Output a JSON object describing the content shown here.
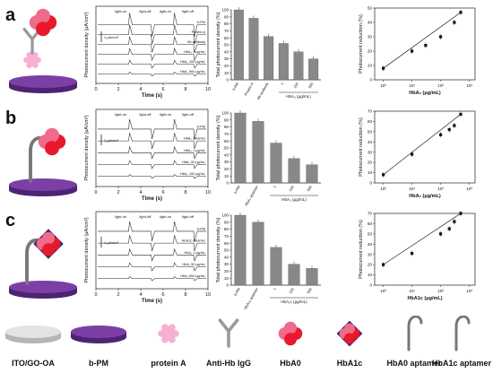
{
  "rows": [
    {
      "letter": "a",
      "trace_labels": [
        "b-PM",
        "Protein A",
        "Hb antibody",
        "HbA₀ 1 μg/mL",
        "HbA₀ 100 μg/mL",
        "HbA₀ 500 μg/mL"
      ],
      "light_labels": [
        "light-on",
        "light-off",
        "light-on",
        "light-off"
      ],
      "scale_label": "1 μA/cm²",
      "bar_categories": [
        "b-PM",
        "Protein A",
        "Hb antibody",
        "1",
        "100",
        "500"
      ],
      "bar_values": [
        100,
        88,
        62,
        52,
        40,
        30
      ],
      "bar_group_label": "HbA₀ (μg/mL)",
      "scatter_x": [
        1,
        10,
        30,
        100,
        300,
        500
      ],
      "scatter_y": [
        8,
        20,
        24,
        30,
        40,
        47
      ],
      "scatter_xlabel": "HbA₀ (μg/mL)"
    },
    {
      "letter": "b",
      "trace_labels": [
        "b-PM",
        "HbA₀ aptamer",
        "HbA₀ 1 μg/mL",
        "HbA₀ 50 μg/mL",
        "HbA₀ 100 μg/mL"
      ],
      "light_labels": [
        "light-on",
        "light-off",
        "light-on",
        "light-off"
      ],
      "scale_label": "1 μA/cm²",
      "bar_categories": [
        "b-PM",
        "HbA₀ aptamer",
        "1",
        "100",
        "500"
      ],
      "bar_values": [
        100,
        88,
        57,
        35,
        26
      ],
      "bar_group_label": "HbA₀ (μg/mL)",
      "scatter_x": [
        1,
        10,
        100,
        200,
        300,
        500
      ],
      "scatter_y": [
        8,
        28,
        47,
        52,
        56,
        67
      ],
      "scatter_xlabel": "HbA₀ (μg/mL)"
    },
    {
      "letter": "c",
      "trace_labels": [
        "b-PM",
        "HbA1c aptamer",
        "HbA₁ 1 μg/mL",
        "HbA₁ 50 μg/mL",
        "HbA₁ 500 μg/mL"
      ],
      "light_labels": [
        "light-on",
        "light-off",
        "light-on",
        "light-off"
      ],
      "scale_label": "1 μA/cm²",
      "bar_categories": [
        "b-PM",
        "HbA₁c aptamer",
        "1",
        "100",
        "500"
      ],
      "bar_values": [
        100,
        90,
        54,
        30,
        24
      ],
      "bar_group_label": "HbA₁c (μg/mL)",
      "scatter_x": [
        1,
        10,
        100,
        200,
        300,
        500
      ],
      "scatter_y": [
        20,
        31,
        50,
        55,
        62,
        70
      ],
      "scatter_xlabel": "HbA1c (μg/mL)"
    }
  ],
  "trace_ylabel": "Photocurrent density (μA/cm²)",
  "trace_xlabel": "Time (s)",
  "trace_xticks": [
    "0",
    "2",
    "4",
    "6",
    "8",
    "10"
  ],
  "bar_ylabel": "Total photocurrent density (%)",
  "bar_yticks": [
    "0",
    "10",
    "20",
    "30",
    "40",
    "50",
    "60",
    "70",
    "80",
    "90",
    "100"
  ],
  "scatter_ylabel": "Photocurrent reduction (%)",
  "scatter_yticks_a": [
    "0",
    "10",
    "20",
    "30",
    "40",
    "50"
  ],
  "scatter_yticks_bc": [
    "0",
    "10",
    "20",
    "30",
    "40",
    "50",
    "60",
    "70"
  ],
  "scatter_xticks": [
    "10⁰",
    "10¹",
    "10²",
    "10³"
  ],
  "legend": [
    {
      "icon": "ito-disc-icon",
      "label": "ITO/GO-OA"
    },
    {
      "icon": "bpm-disc-icon",
      "label": "b-PM"
    },
    {
      "icon": "protein-a-icon",
      "label": "protein A"
    },
    {
      "icon": "antibody-icon",
      "label": "Anti-Hb IgG"
    },
    {
      "icon": "hba0-icon",
      "label": "HbA0"
    },
    {
      "icon": "hba1c-icon",
      "label": "HbA1c"
    },
    {
      "icon": "hba0-aptamer-icon",
      "label": "HbA0 aptamer"
    },
    {
      "icon": "hba1c-aptamer-icon",
      "label": "HbA1c aptamer"
    }
  ],
  "colors": {
    "purple": "#7b3fa6",
    "purple_dark": "#4e2373",
    "red": "#e8192c",
    "pink": "#f06a8a",
    "gray_bar": "#888888",
    "disc_gray": "#cfcfcf"
  }
}
